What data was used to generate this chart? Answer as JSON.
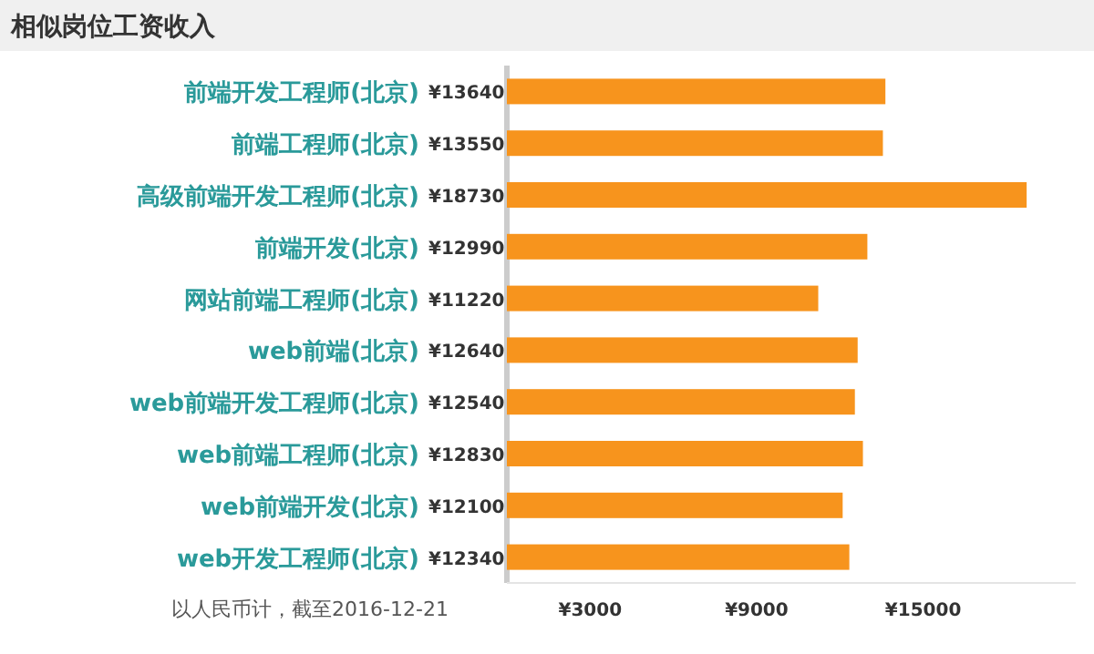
{
  "chart_data": {
    "type": "bar",
    "orientation": "horizontal",
    "title": "相似岗位工资收入",
    "categories": [
      "前端开发工程师(北京)",
      "前端工程师(北京)",
      "高级前端开发工程师(北京)",
      "前端开发(北京)",
      "网站前端工程师(北京)",
      "web前端(北京)",
      "web前端开发工程师(北京)",
      "web前端工程师(北京)",
      "web前端开发(北京)",
      "web开发工程师(北京)"
    ],
    "values": [
      13640,
      13550,
      18730,
      12990,
      11220,
      12640,
      12540,
      12830,
      12100,
      12340
    ],
    "value_labels": [
      "¥13640",
      "¥13550",
      "¥18730",
      "¥12990",
      "¥11220",
      "¥12640",
      "¥12540",
      "¥12830",
      "¥12100",
      "¥12340"
    ],
    "color": "#f7941d",
    "xlim": [
      0,
      20500
    ],
    "xticks": [
      {
        "value": 3000,
        "label": "¥3000"
      },
      {
        "value": 9000,
        "label": "¥9000"
      },
      {
        "value": 15000,
        "label": "¥15000"
      }
    ],
    "annotations": [
      "以人民币计，截至2016-12-21"
    ],
    "grid": false
  }
}
